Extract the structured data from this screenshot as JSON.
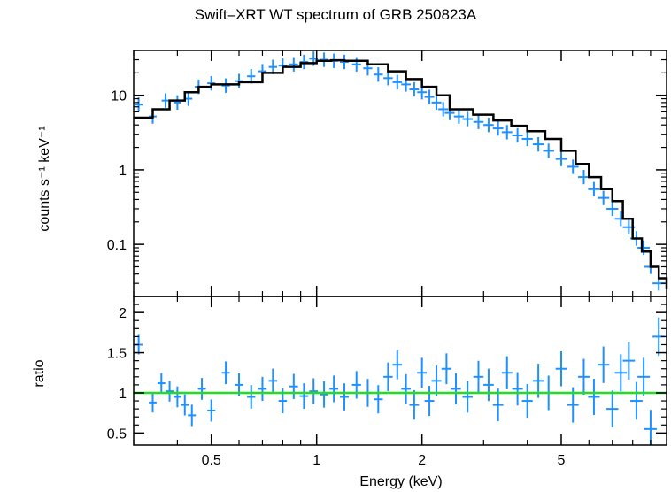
{
  "chart_data": [
    {
      "type": "scatter",
      "panel": "spectrum",
      "title": "Swift–XRT WT spectrum of GRB 250823A",
      "ylabel": "counts s⁻¹ keV⁻¹",
      "xscale": "log",
      "yscale": "log",
      "xlim": [
        0.3,
        10
      ],
      "ylim": [
        0.02,
        40
      ],
      "yticks": [
        0.1,
        1,
        10
      ],
      "ytick_labels": [
        "0.1",
        "1",
        "10"
      ],
      "series": [
        {
          "role": "data",
          "color": "#1e90ff",
          "x": [
            0.31,
            0.34,
            0.37,
            0.4,
            0.43,
            0.46,
            0.5,
            0.55,
            0.6,
            0.65,
            0.7,
            0.75,
            0.8,
            0.86,
            0.92,
            0.98,
            1.05,
            1.12,
            1.2,
            1.3,
            1.4,
            1.5,
            1.6,
            1.7,
            1.8,
            1.9,
            2.0,
            2.1,
            2.2,
            2.3,
            2.4,
            2.55,
            2.7,
            2.9,
            3.1,
            3.3,
            3.5,
            3.75,
            4.0,
            4.3,
            4.6,
            5.0,
            5.4,
            5.8,
            6.2,
            6.6,
            7.0,
            7.4,
            7.8,
            8.2,
            8.6,
            9.0,
            9.5
          ],
          "y": [
            7.5,
            5.2,
            8.5,
            8.0,
            9.0,
            13,
            14.5,
            13.5,
            15.5,
            18,
            21,
            24,
            25,
            26,
            28,
            31,
            30,
            29,
            28,
            26,
            23,
            19,
            17,
            15,
            14,
            12,
            11,
            9.5,
            8.0,
            6.5,
            5.8,
            5.2,
            4.8,
            4.4,
            4.0,
            3.6,
            3.2,
            2.9,
            2.6,
            2.2,
            1.8,
            1.4,
            1.1,
            0.8,
            0.55,
            0.42,
            0.3,
            0.22,
            0.17,
            0.12,
            0.09,
            0.05,
            0.03
          ]
        },
        {
          "role": "model",
          "color": "#000000",
          "x": [
            0.3,
            0.34,
            0.38,
            0.42,
            0.46,
            0.5,
            0.6,
            0.7,
            0.8,
            0.9,
            1.0,
            1.1,
            1.2,
            1.4,
            1.6,
            1.8,
            2.0,
            2.2,
            2.4,
            2.8,
            3.2,
            3.6,
            4.0,
            4.5,
            5.0,
            5.5,
            6.0,
            6.5,
            7.0,
            7.5,
            8.0,
            8.5,
            9.0,
            9.5,
            10.0
          ],
          "y": [
            5.0,
            6.5,
            8.5,
            11,
            13,
            14,
            15,
            20,
            24,
            27,
            29,
            29.5,
            29,
            26,
            21,
            16.5,
            13,
            10,
            6.5,
            5.5,
            4.6,
            3.9,
            3.3,
            2.6,
            1.8,
            1.2,
            0.8,
            0.55,
            0.38,
            0.22,
            0.12,
            0.08,
            0.05,
            0.035,
            0.025
          ]
        }
      ]
    },
    {
      "type": "scatter",
      "panel": "ratio",
      "xlabel": "Energy (keV)",
      "ylabel": "ratio",
      "xscale": "log",
      "xlim": [
        0.3,
        10
      ],
      "ylim": [
        0.35,
        2.2
      ],
      "xticks": [
        0.5,
        1,
        2,
        5
      ],
      "xtick_labels": [
        "0.5",
        "1",
        "2",
        "5"
      ],
      "yticks": [
        0.5,
        1,
        1.5,
        2
      ],
      "ytick_labels": [
        "0.5",
        "1",
        "1.5",
        "2"
      ],
      "reference_line": {
        "y": 1,
        "color": "#22dd22"
      },
      "series": [
        {
          "role": "ratio",
          "color": "#1e90ff",
          "x": [
            0.31,
            0.34,
            0.36,
            0.38,
            0.4,
            0.42,
            0.44,
            0.47,
            0.5,
            0.55,
            0.6,
            0.65,
            0.7,
            0.75,
            0.8,
            0.86,
            0.92,
            0.98,
            1.05,
            1.12,
            1.2,
            1.3,
            1.4,
            1.5,
            1.6,
            1.7,
            1.8,
            1.9,
            2.0,
            2.1,
            2.2,
            2.35,
            2.5,
            2.7,
            2.9,
            3.1,
            3.3,
            3.5,
            3.75,
            4.0,
            4.3,
            4.6,
            5.0,
            5.4,
            5.8,
            6.2,
            6.6,
            7.0,
            7.4,
            7.8,
            8.2,
            8.6,
            9.0,
            9.5
          ],
          "y": [
            1.6,
            0.88,
            1.12,
            1.02,
            0.95,
            0.85,
            0.72,
            1.05,
            0.78,
            1.25,
            1.1,
            0.95,
            1.05,
            1.15,
            0.9,
            1.08,
            0.96,
            1.02,
            0.98,
            1.05,
            0.95,
            1.1,
            1.0,
            0.92,
            1.2,
            1.35,
            1.05,
            0.85,
            1.25,
            0.9,
            1.15,
            1.3,
            1.05,
            0.95,
            1.2,
            1.1,
            0.85,
            1.25,
            1.05,
            0.9,
            1.15,
            1.0,
            1.3,
            0.85,
            1.2,
            0.95,
            1.35,
            0.8,
            1.25,
            1.4,
            0.9,
            1.2,
            0.55,
            1.7
          ]
        }
      ]
    }
  ]
}
